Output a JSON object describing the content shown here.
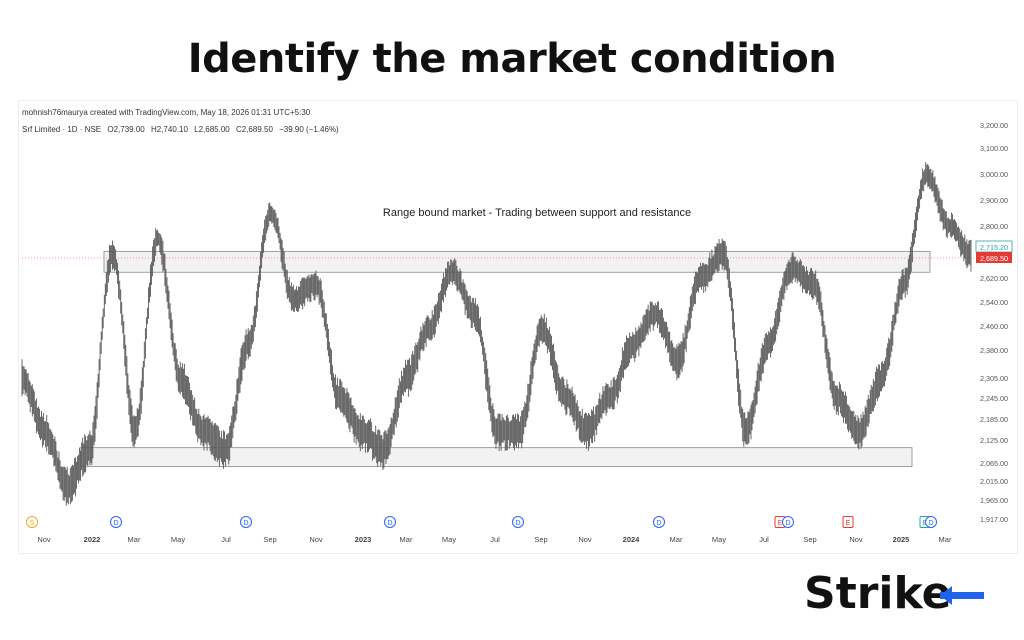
{
  "header": {
    "title": "Identify the market condition"
  },
  "chart_header": {
    "attribution": "mohnish76maurya created with TradingView.com, May 18, 2026 01:31 UTC+5:30",
    "symbol": "Srf Limited · 1D · NSE",
    "open": "O2,739.00",
    "high": "H2,740.10",
    "low": "L2,685.00",
    "close": "C2,689.50",
    "change": "−39.90 (−1.46%)"
  },
  "brand": {
    "name": "Strike"
  },
  "colors": {
    "price": "#5a5a5a",
    "band_fill": "#f2f2f2",
    "band_stroke": "#8a8a8a",
    "last_price_bg": "#e53935",
    "ref_price_fg": "#26a69a",
    "accent": "#1e63e9",
    "text": "#333333"
  },
  "chart_data": {
    "type": "line",
    "title": "Srf Limited · 1D · NSE",
    "annotation": "Range bound market - Trading between support and resistance",
    "x_tick_labels": [
      "Nov",
      "2022",
      "Mar",
      "May",
      "Jul",
      "Sep",
      "Nov",
      "2023",
      "Mar",
      "May",
      "Jul",
      "Sep",
      "Nov",
      "2024",
      "Mar",
      "May",
      "Jul",
      "Sep",
      "Nov",
      "2025",
      "Mar"
    ],
    "y_tick_labels": [
      "3,200.00",
      "3,100.00",
      "3,000.00",
      "2,900.00",
      "2,800.00",
      "2,715.20",
      "2,689.50",
      "2,620.00",
      "2,540.00",
      "2,460.00",
      "2,380.00",
      "2,305.00",
      "2,245.00",
      "2,185.00",
      "2,125.00",
      "2,065.00",
      "2,015.00",
      "1,965.00",
      "1,917.00"
    ],
    "y_axis_side": "right",
    "last_price": "2,689.50",
    "reference_price": "2,715.20",
    "resistance_zone": [
      2640,
      2705
    ],
    "support_zone": [
      2055,
      2105
    ],
    "grid": false,
    "legend": "none",
    "events": [
      {
        "label": "S",
        "date": "2021-11",
        "color": "#f5a623"
      },
      {
        "label": "D",
        "date": "2022-02",
        "color": "#2962ff"
      },
      {
        "label": "D",
        "date": "2022-08",
        "color": "#2962ff"
      },
      {
        "label": "D",
        "date": "2023-03",
        "color": "#2962ff"
      },
      {
        "label": "D",
        "date": "2023-08",
        "color": "#2962ff"
      },
      {
        "label": "D",
        "date": "2024-02",
        "color": "#2962ff"
      },
      {
        "label": "E",
        "date": "2024-07",
        "color": "#e53935"
      },
      {
        "label": "D",
        "date": "2024-07",
        "color": "#2962ff"
      },
      {
        "label": "E",
        "date": "2024-10",
        "color": "#e53935"
      },
      {
        "label": "E",
        "date": "2025-01",
        "color": "#26a69a"
      },
      {
        "label": "D",
        "date": "2025-01",
        "color": "#2962ff"
      }
    ],
    "series": [
      {
        "x": [
          "2021-10",
          "2021-11",
          "2021-12",
          "2022-01",
          "2022-02",
          "2022-03",
          "2022-04",
          "2022-05",
          "2022-06",
          "2022-07",
          "2022-08",
          "2022-09",
          "2022-10",
          "2022-11",
          "2022-12",
          "2023-01",
          "2023-02",
          "2023-03",
          "2023-04",
          "2023-05",
          "2023-06",
          "2023-07",
          "2023-08",
          "2023-09",
          "2023-10",
          "2023-11",
          "2023-12",
          "2024-01",
          "2024-02",
          "2024-03",
          "2024-04",
          "2024-05",
          "2024-06",
          "2024-07",
          "2024-08",
          "2024-09",
          "2024-10",
          "2024-11",
          "2024-12",
          "2025-01",
          "2025-02",
          "2025-03",
          "2025-04"
        ],
        "values": [
          2300,
          2150,
          2000,
          2100,
          2700,
          2150,
          2750,
          2300,
          2150,
          2100,
          2400,
          2850,
          2550,
          2600,
          2250,
          2150,
          2100,
          2300,
          2450,
          2640,
          2500,
          2150,
          2150,
          2450,
          2250,
          2150,
          2250,
          2400,
          2500,
          2350,
          2620,
          2700,
          2150,
          2400,
          2650,
          2600,
          2250,
          2150,
          2300,
          2600,
          3000,
          2800,
          2690
        ]
      }
    ]
  }
}
